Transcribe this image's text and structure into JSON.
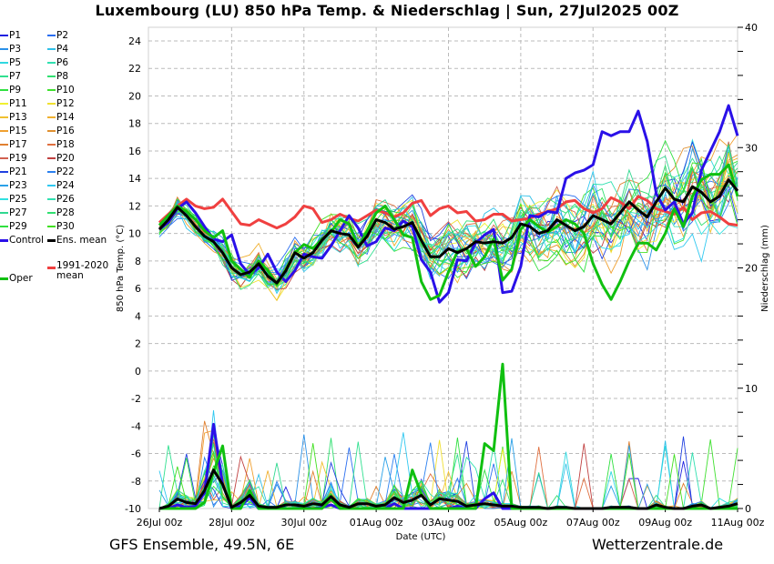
{
  "header": {
    "title": "Luxembourg  (LU)  850 hPa Temp. & Niederschlag | Sun, 27Jul2025 00Z"
  },
  "footer": {
    "model_info": "GFS Ensemble, 49.5N, 6E",
    "source": "Wetterzentrale.de"
  },
  "legend": {
    "items": [
      {
        "label": "P1",
        "color": "#2020e0"
      },
      {
        "label": "P2",
        "color": "#2a6ef0"
      },
      {
        "label": "P3",
        "color": "#2a90e8"
      },
      {
        "label": "P4",
        "color": "#30c0e8"
      },
      {
        "label": "P5",
        "color": "#30d8e0"
      },
      {
        "label": "P6",
        "color": "#30e0b0"
      },
      {
        "label": "P7",
        "color": "#30e090"
      },
      {
        "label": "P8",
        "color": "#30e070"
      },
      {
        "label": "P9",
        "color": "#30e040"
      },
      {
        "label": "P10",
        "color": "#40e030"
      },
      {
        "label": "P11",
        "color": "#f0f030"
      },
      {
        "label": "P12",
        "color": "#f0e030"
      },
      {
        "label": "P13",
        "color": "#f0c030"
      },
      {
        "label": "P14",
        "color": "#f0b030"
      },
      {
        "label": "P15",
        "color": "#f0a030"
      },
      {
        "label": "P16",
        "color": "#e09030"
      },
      {
        "label": "P17",
        "color": "#e08030"
      },
      {
        "label": "P18",
        "color": "#e07040"
      },
      {
        "label": "P19",
        "color": "#d06050"
      },
      {
        "label": "P20",
        "color": "#c04040"
      },
      {
        "label": "P21",
        "color": "#2040e0"
      },
      {
        "label": "P22",
        "color": "#2a80f0"
      },
      {
        "label": "P23",
        "color": "#2aa0e8"
      },
      {
        "label": "P24",
        "color": "#30c8f0"
      },
      {
        "label": "P25",
        "color": "#30e0e0"
      },
      {
        "label": "P26",
        "color": "#30e0b0"
      },
      {
        "label": "P27",
        "color": "#30d890"
      },
      {
        "label": "P28",
        "color": "#30e070"
      },
      {
        "label": "P29",
        "color": "#30e040"
      },
      {
        "label": "P30",
        "color": "#40e020"
      },
      {
        "label": "Control",
        "color": "#2a10e8"
      },
      {
        "label": "Ens. mean",
        "color": "#000000"
      },
      {
        "label": "1991-2020 mean",
        "color": "#f04040"
      },
      {
        "label": "Oper",
        "color": "#10c010"
      }
    ]
  },
  "chart_data": {
    "type": "line",
    "title": "Luxembourg  (LU)  850 hPa Temp. & Niederschlag | Sun, 27Jul2025 00Z",
    "xlabel": "Date (UTC)",
    "ylabel": "850 hPa Temp. (°C)",
    "y2label": "Niederschlag (mm)",
    "ylim": [
      -10,
      25
    ],
    "y2lim": [
      0,
      40
    ],
    "yticks": [
      "-10",
      "-8",
      "-6",
      "-4",
      "-2",
      "0",
      "2",
      "4",
      "6",
      "8",
      "10",
      "12",
      "14",
      "16",
      "18",
      "20",
      "22",
      "24"
    ],
    "y2ticks": [
      "0",
      "10",
      "20",
      "30",
      "40"
    ],
    "xticks": [
      "26Jul 00z",
      "28Jul 00z",
      "30Jul 00z",
      "01Aug 00z",
      "03Aug 00z",
      "05Aug 00z",
      "07Aug 00z",
      "09Aug 00z",
      "11Aug 00z"
    ],
    "time_step_hours": 6,
    "n_points": 65,
    "grid": true,
    "legend_position": "left-outside",
    "temperature": {
      "control": [
        10.3,
        10.8,
        11.8,
        12.3,
        11.5,
        10.5,
        9.6,
        9.4,
        9.9,
        7.8,
        7.0,
        7.5,
        8.5,
        7.2,
        6.5,
        7.3,
        8.5,
        8.3,
        8.2,
        9.1,
        10.2,
        11.3,
        10.4,
        9.1,
        9.4,
        10.4,
        10.2,
        10.9,
        10.5,
        8.1,
        7.2,
        5.0,
        5.7,
        8.1,
        8.0,
        9.3,
        9.9,
        10.3,
        5.7,
        5.8,
        7.6,
        11.3,
        11.2,
        11.6,
        11.5,
        14.0,
        14.4,
        14.6,
        15.0,
        17.4,
        17.1,
        17.4,
        17.4,
        18.9,
        16.7,
        12.9,
        11.7,
        12.3,
        10.7,
        11.5,
        14.6,
        16.0,
        17.4,
        19.3,
        17.1
      ],
      "oper": [
        10.6,
        11.3,
        12.0,
        11.6,
        11.0,
        10.2,
        9.7,
        10.2,
        8.0,
        7.4,
        6.8,
        8.0,
        7.3,
        6.3,
        7.3,
        8.6,
        9.2,
        8.9,
        9.6,
        10.1,
        11.0,
        10.7,
        9.0,
        10.2,
        11.5,
        12.0,
        11.0,
        9.9,
        9.7,
        6.5,
        5.2,
        5.5,
        7.2,
        8.7,
        8.9,
        7.6,
        8.3,
        9.6,
        6.6,
        7.4,
        10.3,
        11.0,
        10.5,
        10.1,
        10.5,
        11.0,
        10.7,
        10.0,
        7.8,
        6.3,
        5.2,
        6.5,
        8.0,
        9.3,
        9.3,
        8.8,
        10.0,
        11.8,
        10.5,
        12.7,
        13.9,
        14.3,
        14.3,
        15.0,
        12.7
      ],
      "ens_mean": [
        10.3,
        11.0,
        11.9,
        11.3,
        10.5,
        9.8,
        9.4,
        8.6,
        7.5,
        7.0,
        7.2,
        7.8,
        6.9,
        6.4,
        7.3,
        8.6,
        8.2,
        8.6,
        9.5,
        10.2,
        10.0,
        9.9,
        9.0,
        9.8,
        11.0,
        10.8,
        10.3,
        10.5,
        10.8,
        9.5,
        8.3,
        8.3,
        8.9,
        8.6,
        8.9,
        9.4,
        9.3,
        9.4,
        9.3,
        9.7,
        10.7,
        10.5,
        10.0,
        10.2,
        11.0,
        10.6,
        10.2,
        10.5,
        11.3,
        11.0,
        10.7,
        11.5,
        12.3,
        11.7,
        11.2,
        12.3,
        13.3,
        12.5,
        12.3,
        13.4,
        13.0,
        12.3,
        12.7,
        13.9,
        13.1
      ],
      "clim_mean": [
        10.8,
        11.4,
        12.0,
        12.5,
        12.0,
        11.8,
        11.9,
        12.5,
        11.6,
        10.7,
        10.6,
        11.0,
        10.7,
        10.4,
        10.7,
        11.2,
        12.0,
        11.8,
        10.8,
        11.0,
        11.4,
        11.1,
        10.9,
        11.3,
        11.7,
        11.5,
        11.2,
        11.5,
        12.2,
        12.4,
        11.3,
        11.8,
        12.0,
        11.5,
        11.6,
        10.9,
        11.0,
        11.4,
        11.4,
        10.9,
        11.0,
        11.1,
        11.4,
        11.6,
        11.8,
        12.3,
        12.4,
        11.8,
        11.5,
        11.8,
        12.6,
        12.3,
        11.8,
        12.7,
        12.4,
        11.8,
        11.6,
        11.4,
        11.9,
        11.0,
        11.5,
        11.6,
        11.2,
        10.7,
        10.6
      ]
    },
    "precipitation": {
      "control": [
        0,
        0,
        0.3,
        0.1,
        0.2,
        1.3,
        7.0,
        2.0,
        0,
        0.2,
        0.9,
        0,
        0,
        0,
        0,
        0,
        0.1,
        0,
        0.1,
        0.3,
        0,
        0,
        0,
        0,
        0,
        0,
        0.4,
        0,
        0,
        0,
        0,
        0,
        0,
        0.2,
        0,
        0,
        0.8,
        1.3,
        0,
        0,
        0,
        0,
        0,
        0,
        0,
        0,
        0,
        0,
        0,
        0,
        0,
        0,
        0,
        0,
        0,
        0,
        0,
        0,
        0,
        0,
        0,
        0,
        0,
        0,
        0
      ],
      "oper": [
        0,
        0,
        0,
        0,
        0,
        0.5,
        3.0,
        5.2,
        0,
        0,
        1.5,
        0,
        0,
        0,
        0,
        0,
        0,
        0,
        0,
        0.8,
        0,
        0,
        0,
        0,
        0,
        0,
        0,
        0,
        3.2,
        1.2,
        0,
        0,
        0,
        0,
        0,
        0,
        5.4,
        4.8,
        12.0,
        0,
        0,
        0,
        0,
        0,
        0,
        0,
        0,
        0,
        0,
        0,
        0,
        0,
        0,
        0,
        0,
        0,
        0,
        0,
        0,
        0,
        0,
        0,
        0,
        0,
        0
      ],
      "ens_mean": [
        0,
        0.2,
        0.8,
        0.5,
        0.4,
        1.5,
        3.2,
        2.0,
        0.1,
        0.5,
        1.1,
        0.2,
        0.1,
        0.1,
        0.3,
        0.3,
        0.2,
        0.4,
        0.3,
        1.0,
        0.3,
        0.1,
        0.4,
        0.4,
        0.2,
        0.3,
        0.9,
        0.5,
        0.7,
        1.1,
        0.3,
        0.8,
        0.7,
        0.6,
        0.2,
        0.3,
        0.4,
        0.3,
        0.2,
        0.2,
        0.1,
        0.1,
        0.1,
        0.0,
        0.1,
        0.1,
        0.0,
        0.0,
        0.0,
        0.0,
        0.1,
        0.1,
        0.1,
        0.0,
        0.0,
        0.3,
        0.1,
        0.0,
        0.0,
        0.2,
        0.3,
        0.0,
        0.1,
        0.2,
        0.4
      ]
    }
  }
}
